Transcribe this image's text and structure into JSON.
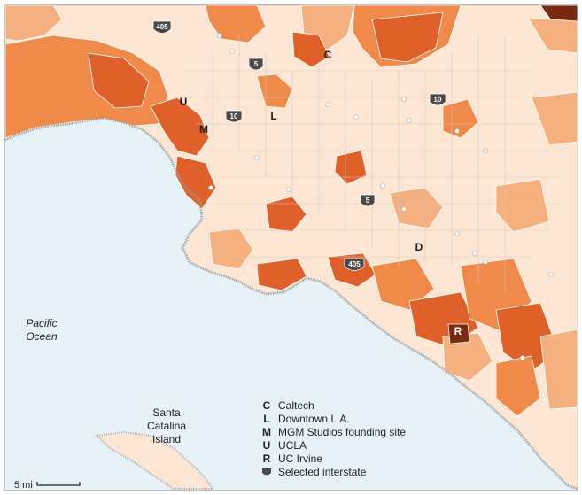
{
  "map": {
    "ocean_label": [
      "Pacific",
      "Ocean"
    ],
    "island_label": [
      "Santa",
      "Catalina",
      "Island"
    ],
    "scale_label": "5 mi",
    "colors": {
      "ocean": "#e6f2f7",
      "land_light": "#fde6d4",
      "land_mid": "#f5b07f",
      "land_orange": "#ef8a4a",
      "land_deep": "#e0602a",
      "land_darkest": "#7a2a12",
      "boundary": "#bdbdbd",
      "shield": "#4a4a4a"
    }
  },
  "interstates": [
    {
      "number": "405"
    },
    {
      "number": "5"
    },
    {
      "number": "10"
    },
    {
      "number": "10"
    },
    {
      "number": "5"
    },
    {
      "number": "405"
    }
  ],
  "markers": [
    {
      "letter": "C"
    },
    {
      "letter": "L"
    },
    {
      "letter": "M"
    },
    {
      "letter": "U"
    },
    {
      "letter": "R"
    },
    {
      "letter": "D"
    }
  ],
  "legend": {
    "items": [
      {
        "key": "C",
        "label": "Caltech"
      },
      {
        "key": "L",
        "label": "Downtown L.A."
      },
      {
        "key": "M",
        "label": "MGM Studios founding site"
      },
      {
        "key": "U",
        "label": "UCLA"
      },
      {
        "key": "R",
        "label": "UC Irvine"
      },
      {
        "key": "shield",
        "label": "Selected interstate"
      }
    ]
  }
}
